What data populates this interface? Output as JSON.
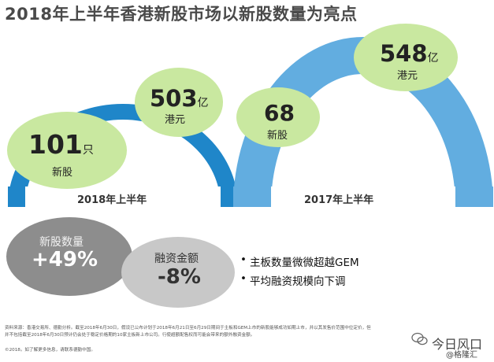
{
  "title": "2018年上半年香港新股市场以新股数量为亮点",
  "left_panel": {
    "period_label": "2018年上半年",
    "count_value": "101",
    "count_unit": "只",
    "count_label": "新股",
    "funds_value": "503",
    "funds_unit": "亿",
    "funds_label": "港元"
  },
  "right_panel": {
    "period_label": "2017年上半年",
    "count_value": "68",
    "count_label": "新股",
    "funds_value": "548",
    "funds_unit": "亿",
    "funds_label": "港元"
  },
  "changes": {
    "count_title": "新股数量",
    "count_value": "+49%",
    "funds_title": "融资金额",
    "funds_value": "-8%"
  },
  "bullets": [
    "主板数量微微超越GEM",
    "平均融资规模向下调"
  ],
  "footnote": "资料来源：香港交易所、德勤分析。截至2018年6月30日，假设已公布计划于2018年6月21日至6月29日期间于主板和GEM上市的新股能够成功如期上市，并以其发售价范围中位定价，但并不包括截至2018年6月30日预计仍会处于稳定价格期的10家主板新上市公司。行使超额配售权而可能会带来的额外融资金额。",
  "copyright": "©2018。如了解更多信息，请联系德勤中国。",
  "watermark": {
    "text": "今日风口",
    "sub": "@格隆汇"
  },
  "colors": {
    "arc_dark_blue": "#1f86c9",
    "arc_light_blue": "#62ade0",
    "bubble_green": "#c9e8a0",
    "circle_dark_gray": "#8d8d8d",
    "circle_light_gray": "#c8c8c8"
  }
}
